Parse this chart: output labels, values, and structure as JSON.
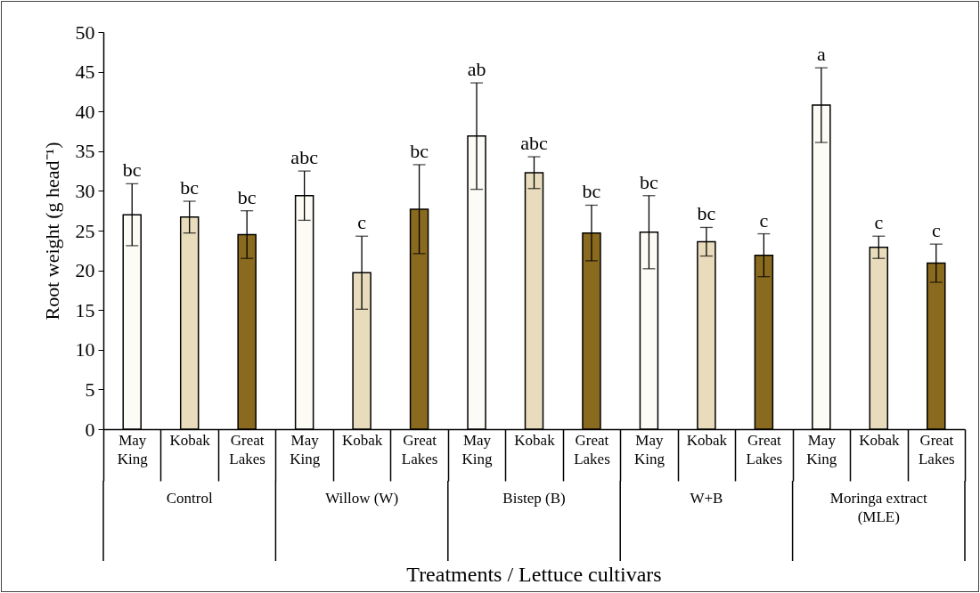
{
  "chart_data": {
    "type": "bar",
    "xlabel": "Treatments / Lettuce cultivars",
    "ylabel": "Root weight (g head⁻¹)",
    "categories": [
      "May King",
      "Kobak",
      "Great Lakes",
      "May King",
      "Kobak",
      "Great Lakes",
      "May King",
      "Kobak",
      "Great Lakes",
      "May King",
      "Kobak",
      "Great Lakes",
      "May King",
      "Kobak",
      "Great Lakes"
    ],
    "values": [
      27.0,
      26.7,
      24.5,
      29.4,
      19.7,
      27.7,
      36.9,
      32.3,
      24.7,
      24.8,
      23.6,
      21.9,
      40.8,
      22.9,
      20.9
    ],
    "errors": [
      3.9,
      2.0,
      3.0,
      3.1,
      4.6,
      5.6,
      6.7,
      2.0,
      3.5,
      4.6,
      1.8,
      2.7,
      4.7,
      1.4,
      2.4
    ],
    "value_labels": [
      "bc",
      "bc",
      "bc",
      "abc",
      "c",
      "bc",
      "ab",
      "abc",
      "bc",
      "bc",
      "bc",
      "c",
      "a",
      "c",
      "c"
    ],
    "colors": [
      "#fdfbf5",
      "#e9dcbc",
      "#8a6a1e",
      "#fdfbf5",
      "#e9dcbc",
      "#8a6a1e",
      "#fdfbf5",
      "#e9dcbc",
      "#8a6a1e",
      "#fdfbf5",
      "#e9dcbc",
      "#8a6a1e",
      "#fdfbf5",
      "#e9dcbc",
      "#8a6a1e"
    ],
    "annotations": [
      "Control",
      "Willow (W)",
      "Bistep (B)",
      "W+B",
      "Moringa extract (MLE)"
    ],
    "ylim": [
      0,
      50
    ],
    "yticks": [
      0,
      5,
      10,
      15,
      20,
      25,
      30,
      35,
      40,
      45,
      50
    ],
    "grid": false
  }
}
